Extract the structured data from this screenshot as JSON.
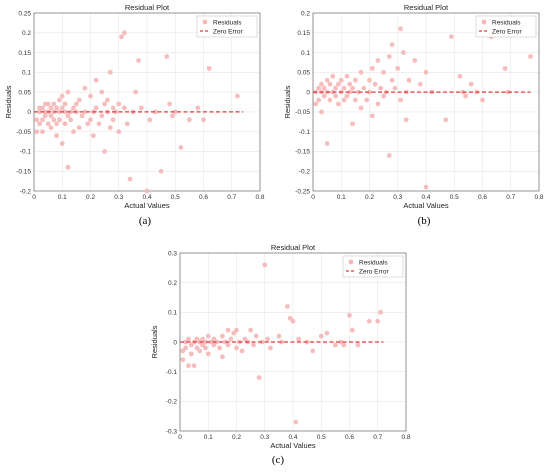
{
  "chart_data": [
    {
      "panel_label": "(a)",
      "type": "scatter",
      "title": "Residual Plot",
      "xlabel": "Actual Values",
      "ylabel": "Residuals",
      "xlim": [
        0,
        0.8
      ],
      "ylim": [
        -0.2,
        0.25
      ],
      "xticks": [
        "0",
        "0.1",
        "0.2",
        "0.3",
        "0.4",
        "0.5",
        "0.6",
        "0.7",
        "0.8"
      ],
      "yticks": [
        "-0.2",
        "-0.15",
        "-0.1",
        "-0.05",
        "0",
        "0.05",
        "0.1",
        "0.15",
        "0.2",
        "0.25"
      ],
      "grid": true,
      "legend_position": "top-right",
      "series": [
        {
          "name": "Residuals",
          "color": "#f4b6b6",
          "points": [
            [
              0.01,
              -0.05
            ],
            [
              0.01,
              -0.02
            ],
            [
              0.02,
              0.0
            ],
            [
              0.02,
              0.01
            ],
            [
              0.02,
              -0.03
            ],
            [
              0.03,
              0.01
            ],
            [
              0.03,
              -0.05
            ],
            [
              0.03,
              -0.02
            ],
            [
              0.04,
              0.0
            ],
            [
              0.04,
              0.02
            ],
            [
              0.04,
              -0.01
            ],
            [
              0.05,
              -0.03
            ],
            [
              0.05,
              0.0
            ],
            [
              0.05,
              0.02
            ],
            [
              0.06,
              -0.01
            ],
            [
              0.06,
              -0.04
            ],
            [
              0.06,
              0.01
            ],
            [
              0.07,
              0.0
            ],
            [
              0.07,
              -0.02
            ],
            [
              0.07,
              0.02
            ],
            [
              0.08,
              -0.06
            ],
            [
              0.08,
              0.01
            ],
            [
              0.08,
              -0.03
            ],
            [
              0.09,
              0.0
            ],
            [
              0.09,
              0.03
            ],
            [
              0.09,
              -0.02
            ],
            [
              0.1,
              0.01
            ],
            [
              0.1,
              -0.08
            ],
            [
              0.1,
              0.04
            ],
            [
              0.11,
              0.0
            ],
            [
              0.11,
              -0.03
            ],
            [
              0.11,
              0.02
            ],
            [
              0.12,
              -0.01
            ],
            [
              0.12,
              -0.14
            ],
            [
              0.12,
              0.05
            ],
            [
              0.13,
              0.0
            ],
            [
              0.13,
              -0.02
            ],
            [
              0.14,
              0.01
            ],
            [
              0.14,
              -0.05
            ],
            [
              0.15,
              0.02
            ],
            [
              0.15,
              0.0
            ],
            [
              0.16,
              -0.04
            ],
            [
              0.16,
              0.03
            ],
            [
              0.17,
              -0.01
            ],
            [
              0.18,
              0.06
            ],
            [
              0.18,
              0.0
            ],
            [
              0.19,
              -0.03
            ],
            [
              0.2,
              0.04
            ],
            [
              0.2,
              -0.02
            ],
            [
              0.21,
              0.0
            ],
            [
              0.21,
              -0.06
            ],
            [
              0.22,
              0.08
            ],
            [
              0.22,
              0.01
            ],
            [
              0.23,
              -0.03
            ],
            [
              0.24,
              0.05
            ],
            [
              0.24,
              -0.01
            ],
            [
              0.25,
              0.02
            ],
            [
              0.25,
              -0.1
            ],
            [
              0.26,
              0.0
            ],
            [
              0.26,
              0.03
            ],
            [
              0.27,
              -0.04
            ],
            [
              0.27,
              0.1
            ],
            [
              0.28,
              0.01
            ],
            [
              0.28,
              -0.02
            ],
            [
              0.29,
              0.0
            ],
            [
              0.3,
              0.02
            ],
            [
              0.3,
              -0.05
            ],
            [
              0.31,
              0.19
            ],
            [
              0.32,
              0.2
            ],
            [
              0.32,
              0.01
            ],
            [
              0.33,
              -0.03
            ],
            [
              0.34,
              -0.17
            ],
            [
              0.35,
              0.0
            ],
            [
              0.36,
              0.05
            ],
            [
              0.37,
              0.13
            ],
            [
              0.38,
              0.01
            ],
            [
              0.4,
              -0.2
            ],
            [
              0.41,
              -0.02
            ],
            [
              0.43,
              0.0
            ],
            [
              0.45,
              -0.15
            ],
            [
              0.47,
              0.14
            ],
            [
              0.48,
              0.02
            ],
            [
              0.49,
              -0.01
            ],
            [
              0.5,
              0.0
            ],
            [
              0.52,
              -0.09
            ],
            [
              0.55,
              -0.02
            ],
            [
              0.58,
              0.01
            ],
            [
              0.6,
              -0.02
            ],
            [
              0.62,
              0.11
            ],
            [
              0.72,
              0.04
            ]
          ]
        },
        {
          "name": "Zero Error",
          "color": "#e03a3a",
          "line_y": 0
        }
      ]
    },
    {
      "panel_label": "(b)",
      "type": "scatter",
      "title": "Residual Plot",
      "xlabel": "Actual Values",
      "ylabel": "Residuals",
      "xlim": [
        0,
        0.8
      ],
      "ylim": [
        -0.25,
        0.2
      ],
      "xticks": [
        "0",
        "0.1",
        "0.2",
        "0.3",
        "0.4",
        "0.5",
        "0.6",
        "0.7",
        "0.8"
      ],
      "yticks": [
        "-0.25",
        "-0.2",
        "-0.15",
        "-0.1",
        "-0.05",
        "0",
        "0.05",
        "0.1",
        "0.15",
        "0.2"
      ],
      "grid": true,
      "legend_position": "top-right",
      "series": [
        {
          "name": "Residuals",
          "color": "#f4b6b6",
          "points": [
            [
              0.01,
              -0.03
            ],
            [
              0.01,
              0.0
            ],
            [
              0.02,
              0.01
            ],
            [
              0.02,
              -0.02
            ],
            [
              0.03,
              0.0
            ],
            [
              0.03,
              0.02
            ],
            [
              0.03,
              -0.05
            ],
            [
              0.04,
              0.01
            ],
            [
              0.04,
              -0.01
            ],
            [
              0.05,
              0.03
            ],
            [
              0.05,
              0.0
            ],
            [
              0.05,
              -0.13
            ],
            [
              0.06,
              0.02
            ],
            [
              0.06,
              -0.02
            ],
            [
              0.07,
              0.0
            ],
            [
              0.07,
              0.04
            ],
            [
              0.08,
              -0.01
            ],
            [
              0.08,
              0.01
            ],
            [
              0.09,
              0.02
            ],
            [
              0.09,
              -0.03
            ],
            [
              0.1,
              0.0
            ],
            [
              0.1,
              0.03
            ],
            [
              0.11,
              -0.02
            ],
            [
              0.11,
              0.01
            ],
            [
              0.12,
              0.04
            ],
            [
              0.12,
              -0.01
            ],
            [
              0.13,
              0.0
            ],
            [
              0.13,
              0.02
            ],
            [
              0.14,
              -0.08
            ],
            [
              0.14,
              0.01
            ],
            [
              0.15,
              0.03
            ],
            [
              0.15,
              -0.02
            ],
            [
              0.16,
              0.0
            ],
            [
              0.17,
              0.05
            ],
            [
              0.17,
              -0.04
            ],
            [
              0.18,
              0.01
            ],
            [
              0.19,
              -0.02
            ],
            [
              0.2,
              0.03
            ],
            [
              0.2,
              0.0
            ],
            [
              0.21,
              0.06
            ],
            [
              0.21,
              -0.06
            ],
            [
              0.22,
              0.02
            ],
            [
              0.23,
              0.08
            ],
            [
              0.23,
              -0.03
            ],
            [
              0.24,
              0.01
            ],
            [
              0.25,
              0.05
            ],
            [
              0.25,
              -0.01
            ],
            [
              0.26,
              0.0
            ],
            [
              0.27,
              0.09
            ],
            [
              0.27,
              -0.16
            ],
            [
              0.28,
              0.03
            ],
            [
              0.28,
              0.12
            ],
            [
              0.29,
              0.01
            ],
            [
              0.3,
              0.06
            ],
            [
              0.31,
              0.16
            ],
            [
              0.31,
              -0.02
            ],
            [
              0.32,
              0.1
            ],
            [
              0.33,
              0.0
            ],
            [
              0.33,
              -0.07
            ],
            [
              0.34,
              0.03
            ],
            [
              0.36,
              0.08
            ],
            [
              0.38,
              0.02
            ],
            [
              0.4,
              -0.24
            ],
            [
              0.4,
              0.05
            ],
            [
              0.42,
              0.0
            ],
            [
              0.47,
              -0.07
            ],
            [
              0.49,
              0.14
            ],
            [
              0.52,
              0.04
            ],
            [
              0.53,
              0.0
            ],
            [
              0.54,
              -0.01
            ],
            [
              0.56,
              0.02
            ],
            [
              0.58,
              0.0
            ],
            [
              0.6,
              -0.02
            ],
            [
              0.63,
              0.14
            ],
            [
              0.68,
              0.06
            ],
            [
              0.69,
              0.0
            ],
            [
              0.77,
              0.09
            ]
          ]
        },
        {
          "name": "Zero Error",
          "color": "#e03a3a",
          "line_y": 0
        }
      ]
    },
    {
      "panel_label": "(c)",
      "type": "scatter",
      "title": "Residual Plot",
      "xlabel": "Actual Values",
      "ylabel": "Residuals",
      "xlim": [
        0,
        0.8
      ],
      "ylim": [
        -0.3,
        0.3
      ],
      "xticks": [
        "0",
        "0.1",
        "0.2",
        "0.3",
        "0.4",
        "0.5",
        "0.6",
        "0.7",
        "0.8"
      ],
      "yticks": [
        "-0.3",
        "-0.2",
        "-0.1",
        "0",
        "0.1",
        "0.2",
        "0.3"
      ],
      "grid": true,
      "legend_position": "top-right",
      "series": [
        {
          "name": "Residuals",
          "color": "#f4b6b6",
          "points": [
            [
              0.01,
              -0.03
            ],
            [
              0.01,
              -0.06
            ],
            [
              0.02,
              0.0
            ],
            [
              0.02,
              -0.02
            ],
            [
              0.03,
              -0.08
            ],
            [
              0.03,
              0.01
            ],
            [
              0.04,
              -0.01
            ],
            [
              0.04,
              -0.04
            ],
            [
              0.05,
              0.0
            ],
            [
              0.05,
              -0.08
            ],
            [
              0.06,
              0.01
            ],
            [
              0.06,
              -0.02
            ],
            [
              0.07,
              0.0
            ],
            [
              0.07,
              -0.03
            ],
            [
              0.08,
              0.01
            ],
            [
              0.08,
              -0.01
            ],
            [
              0.09,
              0.0
            ],
            [
              0.09,
              -0.02
            ],
            [
              0.1,
              0.02
            ],
            [
              0.1,
              -0.04
            ],
            [
              0.11,
              0.0
            ],
            [
              0.12,
              -0.01
            ],
            [
              0.12,
              0.01
            ],
            [
              0.13,
              0.0
            ],
            [
              0.14,
              -0.02
            ],
            [
              0.15,
              0.02
            ],
            [
              0.15,
              -0.05
            ],
            [
              0.16,
              0.0
            ],
            [
              0.17,
              0.04
            ],
            [
              0.17,
              -0.01
            ],
            [
              0.18,
              0.01
            ],
            [
              0.19,
              0.03
            ],
            [
              0.2,
              -0.02
            ],
            [
              0.2,
              0.04
            ],
            [
              0.21,
              0.0
            ],
            [
              0.22,
              -0.03
            ],
            [
              0.23,
              0.01
            ],
            [
              0.24,
              0.0
            ],
            [
              0.25,
              0.04
            ],
            [
              0.26,
              -0.01
            ],
            [
              0.27,
              0.02
            ],
            [
              0.28,
              -0.12
            ],
            [
              0.29,
              0.0
            ],
            [
              0.3,
              0.26
            ],
            [
              0.31,
              0.01
            ],
            [
              0.32,
              -0.02
            ],
            [
              0.35,
              0.02
            ],
            [
              0.36,
              0.0
            ],
            [
              0.38,
              0.12
            ],
            [
              0.39,
              0.08
            ],
            [
              0.4,
              0.07
            ],
            [
              0.41,
              -0.27
            ],
            [
              0.42,
              0.01
            ],
            [
              0.45,
              0.0
            ],
            [
              0.47,
              -0.03
            ],
            [
              0.5,
              0.02
            ],
            [
              0.52,
              0.03
            ],
            [
              0.55,
              -0.01
            ],
            [
              0.57,
              0.0
            ],
            [
              0.58,
              -0.01
            ],
            [
              0.6,
              0.09
            ],
            [
              0.61,
              0.04
            ],
            [
              0.63,
              -0.01
            ],
            [
              0.67,
              0.07
            ],
            [
              0.7,
              0.07
            ],
            [
              0.71,
              0.1
            ]
          ]
        },
        {
          "name": "Zero Error",
          "color": "#e03a3a",
          "line_y": 0
        }
      ]
    }
  ]
}
